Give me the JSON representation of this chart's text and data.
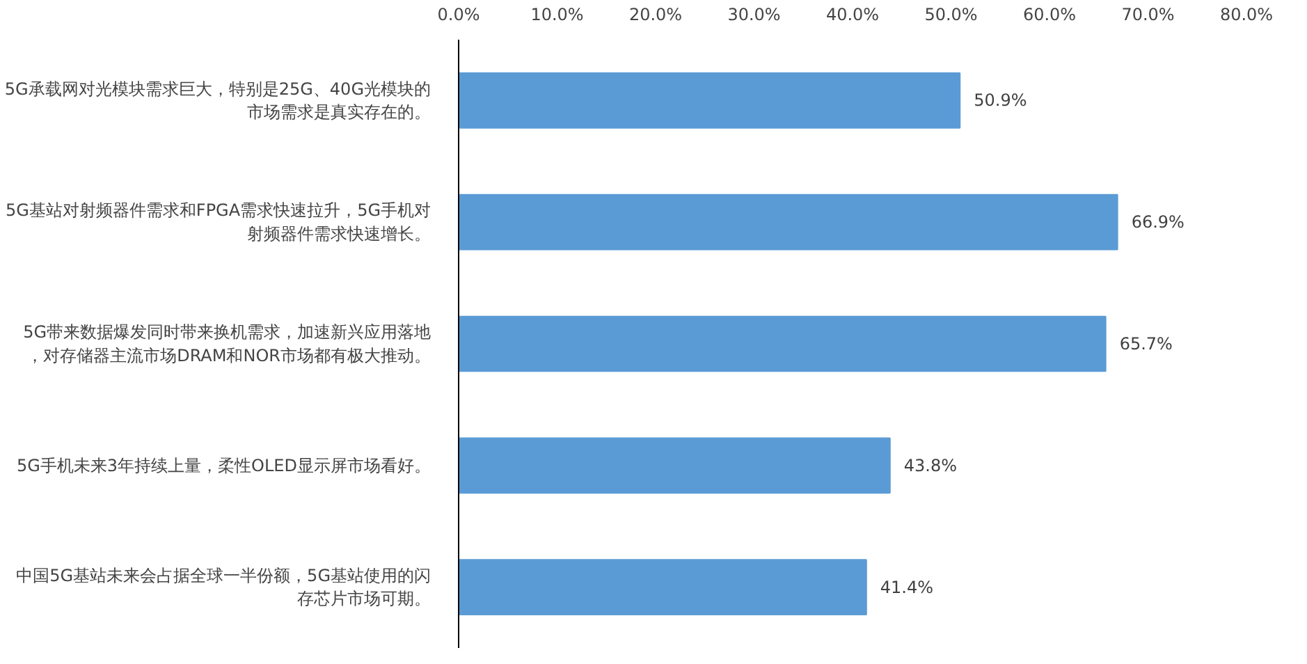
{
  "chart_data": {
    "type": "bar",
    "orientation": "horizontal",
    "categories": [
      "5G承载网对光模块需求巨大，特别是25G、40G光模块的市场需求是真实存在的。",
      "5G基站对射频器件需求和FPGA需求快速拉升，5G手机对射频器件需求快速增长。",
      "5G带来数据爆发同时带来换机需求，加速新兴应用落地，对存储器主流市场DRAM和NOR市场都有极大推动。",
      "5G手机未来3年持续上量，柔性OLED显示屏市场看好。",
      "中国5G基站未来会占据全球一半份额，5G基站使用的闪存芯片市场可期。"
    ],
    "values": [
      50.9,
      66.9,
      65.7,
      43.8,
      41.4
    ],
    "value_labels": [
      "50.9%",
      "66.9%",
      "65.7%",
      "43.8%",
      "41.4%"
    ],
    "color": "#5b9bd5",
    "xlim": [
      0,
      80
    ],
    "xticks": [
      {
        "value": 0,
        "label": "0.0%"
      },
      {
        "value": 10,
        "label": "10.0%"
      },
      {
        "value": 20,
        "label": "20.0%"
      },
      {
        "value": 30,
        "label": "30.0%"
      },
      {
        "value": 40,
        "label": "40.0%"
      },
      {
        "value": 50,
        "label": "50.0%"
      },
      {
        "value": 60,
        "label": "60.0%"
      },
      {
        "value": 70,
        "label": "70.0%"
      },
      {
        "value": 80,
        "label": "80.0%"
      }
    ],
    "grid": false
  }
}
